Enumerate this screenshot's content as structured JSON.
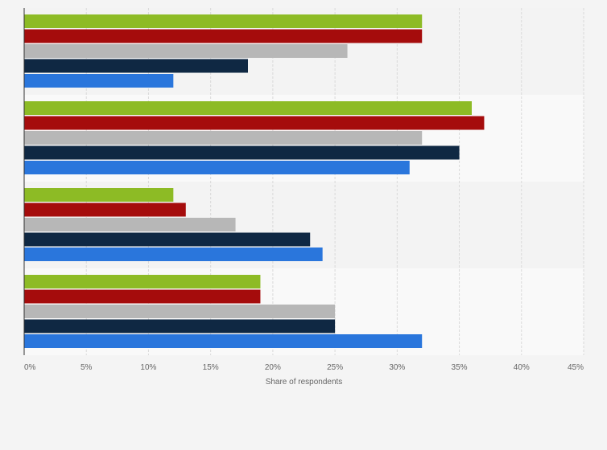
{
  "chart_data": {
    "type": "bar",
    "orientation": "horizontal",
    "xlabel": "Share of respondents",
    "xlim": [
      0,
      45
    ],
    "x_ticks": [
      "0%",
      "5%",
      "10%",
      "15%",
      "20%",
      "25%",
      "30%",
      "35%",
      "40%",
      "45%"
    ],
    "grid": true,
    "legend": "none",
    "series": [
      {
        "color": "#8dbb25",
        "values": [
          32,
          36,
          12,
          19
        ]
      },
      {
        "color": "#a50c0c",
        "values": [
          32,
          37,
          13,
          19
        ]
      },
      {
        "color": "#b7b7b7",
        "values": [
          26,
          32,
          17,
          25
        ]
      },
      {
        "color": "#0f2843",
        "values": [
          18,
          35,
          23,
          25
        ]
      },
      {
        "color": "#2a76dc",
        "values": [
          12,
          31,
          24,
          32
        ]
      }
    ]
  },
  "colors": {
    "background": "#f4f4f4",
    "band_light": "#f9f9f9",
    "band_dark": "#f3f3f3",
    "gridline": "#d9d9d9",
    "axis": "#333333",
    "text": "#666666"
  }
}
